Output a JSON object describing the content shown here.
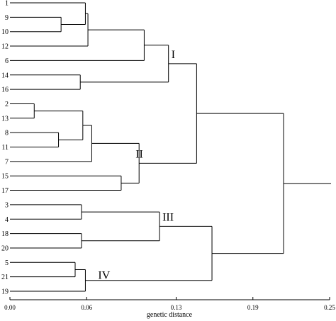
{
  "dendrogram": {
    "leaves": [
      "1",
      "9",
      "10",
      "12",
      "6",
      "14",
      "16",
      "2",
      "13",
      "8",
      "11",
      "7",
      "15",
      "17",
      "3",
      "4",
      "18",
      "20",
      "5",
      "21",
      "19"
    ],
    "merges": [
      {
        "children": [
          "9",
          "10"
        ],
        "height": 0.04
      },
      {
        "children": [
          "1",
          "9+10"
        ],
        "height": 0.059
      },
      {
        "children": [
          "1+9+10",
          "12"
        ],
        "height": 0.061
      },
      {
        "children": [
          "1+9+10+12",
          "6"
        ],
        "height": 0.105
      },
      {
        "children": [
          "14",
          "16"
        ],
        "height": 0.055
      },
      {
        "children": [
          "1+9+10+12+6",
          "14+16"
        ],
        "height": 0.124
      },
      {
        "children": [
          "2",
          "13"
        ],
        "height": 0.019
      },
      {
        "children": [
          "8",
          "11"
        ],
        "height": 0.038
      },
      {
        "children": [
          "2+13",
          "8+11"
        ],
        "height": 0.057
      },
      {
        "children": [
          "2+13+8+11",
          "7"
        ],
        "height": 0.064
      },
      {
        "children": [
          "15",
          "17"
        ],
        "height": 0.087
      },
      {
        "children": [
          "2+13+8+11+7",
          "15+17"
        ],
        "height": 0.101
      },
      {
        "children": [
          "I-group",
          "II-group"
        ],
        "height": 0.146
      },
      {
        "children": [
          "3",
          "4"
        ],
        "height": 0.056
      },
      {
        "children": [
          "18",
          "20"
        ],
        "height": 0.056
      },
      {
        "children": [
          "3+4",
          "18+20"
        ],
        "height": 0.117
      },
      {
        "children": [
          "5",
          "21"
        ],
        "height": 0.051
      },
      {
        "children": [
          "5+21",
          "19"
        ],
        "height": 0.059
      },
      {
        "children": [
          "III-group",
          "IV-group"
        ],
        "height": 0.158
      },
      {
        "children": [
          "I+II",
          "III+IV"
        ],
        "height": 0.214
      }
    ],
    "clusters": [
      {
        "label": "I",
        "members": [
          "1",
          "9",
          "10",
          "12",
          "6",
          "14",
          "16"
        ]
      },
      {
        "label": "II",
        "members": [
          "2",
          "13",
          "8",
          "11",
          "7",
          "15",
          "17"
        ]
      },
      {
        "label": "III",
        "members": [
          "3",
          "4",
          "18",
          "20"
        ]
      },
      {
        "label": "IV",
        "members": [
          "5",
          "21",
          "19"
        ]
      }
    ]
  },
  "axis": {
    "title": "genetic distance",
    "range": [
      0.0,
      0.25
    ],
    "ticks": [
      {
        "value": 0.0,
        "label": "0.00"
      },
      {
        "value": 0.06,
        "label": "0.06"
      },
      {
        "value": 0.13,
        "label": "0.13"
      },
      {
        "value": 0.19,
        "label": "0.19"
      },
      {
        "value": 0.25,
        "label": "0.25"
      }
    ]
  },
  "colors": {
    "line": "#000000",
    "background": "#ffffff"
  }
}
